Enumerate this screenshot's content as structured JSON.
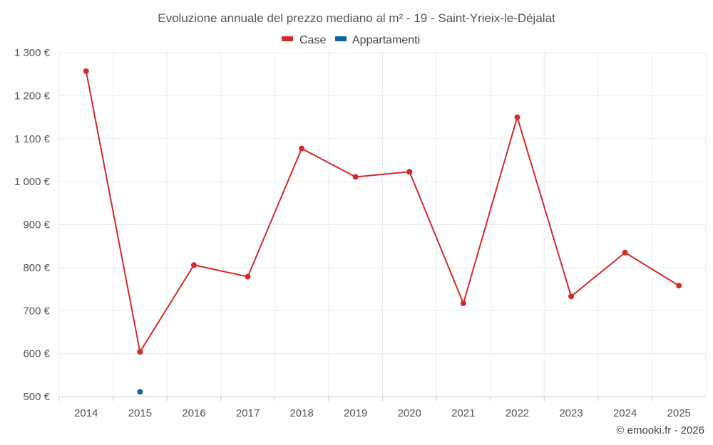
{
  "chart_data": {
    "type": "line",
    "title": "Evoluzione annuale del prezzo mediano al m² - 19 - Saint-Yrieix-le-Déjalat",
    "categories": [
      "2014",
      "2015",
      "2016",
      "2017",
      "2018",
      "2019",
      "2020",
      "2021",
      "2022",
      "2023",
      "2024",
      "2025"
    ],
    "series": [
      {
        "name": "Case",
        "color": "#d42a2a",
        "values": [
          1257,
          604,
          806,
          779,
          1077,
          1011,
          1023,
          717,
          1150,
          733,
          835,
          758
        ]
      },
      {
        "name": "Appartamenti",
        "color": "#0b64a0",
        "values": [
          null,
          511,
          null,
          null,
          null,
          null,
          null,
          null,
          null,
          null,
          null,
          null
        ]
      }
    ],
    "ylim": [
      500,
      1300
    ],
    "yticks": [
      500,
      600,
      700,
      800,
      900,
      1000,
      1100,
      1200,
      1300
    ],
    "ytick_labels": [
      "500 €",
      "600 €",
      "700 €",
      "800 €",
      "900 €",
      "1 000 €",
      "1 100 €",
      "1 200 €",
      "1 300 €"
    ],
    "xlabel": "",
    "ylabel": "",
    "grid": true,
    "legend_position": "top-center"
  },
  "credit": "© emooki.fr - 2026"
}
